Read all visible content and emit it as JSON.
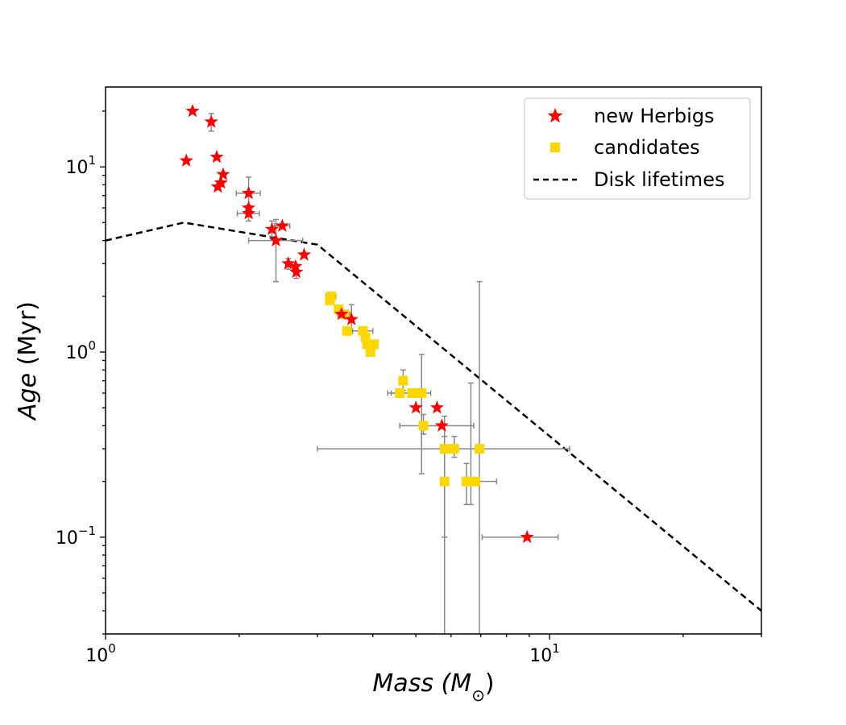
{
  "chart_data": {
    "type": "scatter",
    "x_scale": "log",
    "y_scale": "log",
    "xlim": [
      1,
      30
    ],
    "ylim": [
      0.03,
      27
    ],
    "xlabel_main": "Mass (M",
    "xlabel_sub": "⊙",
    "xlabel_close": ")",
    "ylabel_main": "Age",
    "ylabel_unit": " (Myr)",
    "x_ticks": [
      {
        "value": 1,
        "base": "10",
        "exp": "0"
      },
      {
        "value": 10,
        "base": "10",
        "exp": "1"
      }
    ],
    "y_ticks": [
      {
        "value": 0.1,
        "base": "10",
        "exp": "−1"
      },
      {
        "value": 1,
        "base": "10",
        "exp": "0"
      },
      {
        "value": 10,
        "base": "10",
        "exp": "1"
      }
    ],
    "grid": false,
    "legend_position": "top-right",
    "series": [
      {
        "name": "new Herbigs",
        "marker": "star",
        "color": "#ff0000",
        "points": [
          {
            "x": 1.57,
            "y": 20.0
          },
          {
            "x": 1.73,
            "y": 17.5,
            "y_err": [
              1.9,
              1.9
            ]
          },
          {
            "x": 1.52,
            "y": 10.8
          },
          {
            "x": 1.78,
            "y": 11.3
          },
          {
            "x": 1.84,
            "y": 9.1
          },
          {
            "x": 1.82,
            "y": 8.2
          },
          {
            "x": 1.79,
            "y": 7.8
          },
          {
            "x": 2.1,
            "y": 7.2,
            "x_err": [
              0.13,
              0.13
            ],
            "y_err": [
              1.2,
              1.6
            ]
          },
          {
            "x": 2.1,
            "y": 6.0
          },
          {
            "x": 2.1,
            "y": 5.6,
            "x_err": [
              0.12,
              0.12
            ],
            "y_err": [
              0.5,
              0.6
            ]
          },
          {
            "x": 2.37,
            "y": 4.6,
            "y_err": [
              0.4,
              0.5
            ]
          },
          {
            "x": 2.5,
            "y": 4.8,
            "x_err": [
              0.1,
              0.1
            ]
          },
          {
            "x": 2.42,
            "y": 4.0,
            "x_err": [
              0.32,
              0.36
            ],
            "y_err": [
              1.6,
              1.2
            ]
          },
          {
            "x": 2.58,
            "y": 3.0,
            "y_err": [
              0.2,
              0.2
            ]
          },
          {
            "x": 2.68,
            "y": 2.9
          },
          {
            "x": 2.69,
            "y": 2.7,
            "y_err": [
              0.2,
              0.2
            ]
          },
          {
            "x": 2.8,
            "y": 3.35
          },
          {
            "x": 3.4,
            "y": 1.6
          },
          {
            "x": 3.58,
            "y": 1.5,
            "y_err": [
              0.2,
              0.3
            ]
          },
          {
            "x": 5.0,
            "y": 0.5
          },
          {
            "x": 5.58,
            "y": 0.5
          },
          {
            "x": 5.72,
            "y": 0.4
          },
          {
            "x": 8.9,
            "y": 0.1,
            "x_err": [
              1.85,
              1.55
            ]
          }
        ]
      },
      {
        "name": "candidates",
        "marker": "square",
        "color": "#ffd700",
        "points": [
          {
            "x": 3.22,
            "y": 2.0,
            "x_err": [
              0.08,
              0.08
            ]
          },
          {
            "x": 3.2,
            "y": 1.9
          },
          {
            "x": 3.35,
            "y": 1.7
          },
          {
            "x": 3.45,
            "y": 1.6,
            "x_err": [
              0.12,
              0.1
            ]
          },
          {
            "x": 3.5,
            "y": 1.3
          },
          {
            "x": 3.8,
            "y": 1.3,
            "x_err": [
              0.2,
              0.2
            ]
          },
          {
            "x": 3.85,
            "y": 1.2
          },
          {
            "x": 3.88,
            "y": 1.1
          },
          {
            "x": 3.95,
            "y": 1.0
          },
          {
            "x": 4.02,
            "y": 1.1
          },
          {
            "x": 4.68,
            "y": 0.7,
            "y_err": [
              0.08,
              0.1
            ]
          },
          {
            "x": 4.6,
            "y": 0.6,
            "x_err": [
              0.28,
              0.32
            ]
          },
          {
            "x": 4.9,
            "y": 0.6,
            "x_err": [
              0.5,
              0.5
            ]
          },
          {
            "x": 5.15,
            "y": 0.6,
            "y_err": [
              0.38,
              0.37
            ]
          },
          {
            "x": 5.2,
            "y": 0.4,
            "x_err": [
              0.6,
              1.55
            ],
            "y_err": [
              0.04,
              0.06
            ]
          },
          {
            "x": 5.8,
            "y": 0.3,
            "x_err": [
              2.8,
              5.3
            ],
            "y_err": [
              0.2,
              0.15
            ]
          },
          {
            "x": 6.1,
            "y": 0.3,
            "y_err": [
              0.03,
              0.05
            ]
          },
          {
            "x": 6.95,
            "y": 0.3,
            "y_err": [
              0.28,
              2.1
            ]
          },
          {
            "x": 5.8,
            "y": 0.2,
            "y_err": [
              0.17,
              0.15
            ]
          },
          {
            "x": 6.5,
            "y": 0.2,
            "y_err": [
              0.05,
              0.05
            ]
          },
          {
            "x": 6.65,
            "y": 0.2,
            "y_err": [
              0.05,
              0.48
            ]
          },
          {
            "x": 6.8,
            "y": 0.2,
            "x_err": [
              0.4,
              0.8
            ]
          }
        ]
      },
      {
        "name": "Disk lifetimes",
        "type": "line",
        "style": "dashed",
        "color": "#000000",
        "points": [
          {
            "x": 1.0,
            "y": 4.0
          },
          {
            "x": 1.5,
            "y": 5.0
          },
          {
            "x": 3.0,
            "y": 3.8
          },
          {
            "x": 30.0,
            "y": 0.04
          }
        ]
      }
    ]
  }
}
